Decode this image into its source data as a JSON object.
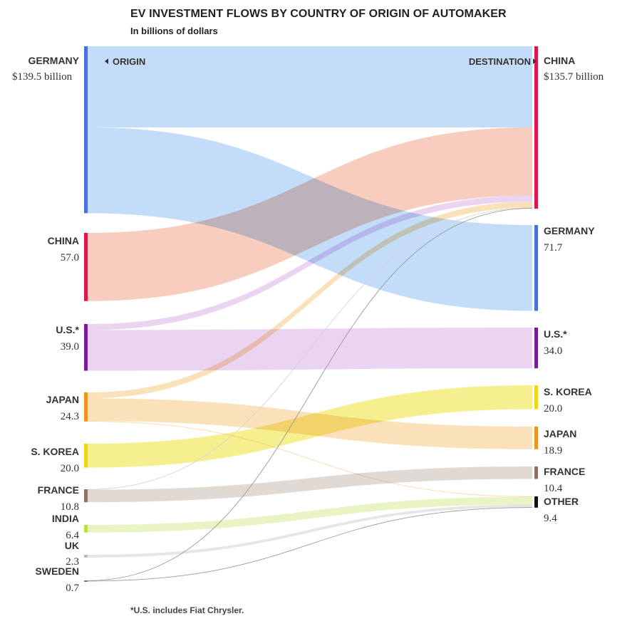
{
  "title": "EV INVESTMENT FLOWS BY COUNTRY OF ORIGIN OF AUTOMAKER",
  "subtitle": "In billions of dollars",
  "footnote": "*U.S. includes Fiat Chrysler.",
  "origin_header": "ORIGIN",
  "destination_header": "DESTINATION",
  "chart_data": {
    "type": "sankey",
    "units": "billions of dollars",
    "sources": [
      {
        "name": "GERMANY",
        "value_label": "$139.5 billion",
        "value": 139.5,
        "color": "#4a6ee0"
      },
      {
        "name": "CHINA",
        "value_label": "57.0",
        "value": 57.0,
        "color": "#e0174b"
      },
      {
        "name": "U.S.*",
        "value_label": "39.0",
        "value": 39.0,
        "color": "#7a1a9a"
      },
      {
        "name": "JAPAN",
        "value_label": "24.3",
        "value": 24.3,
        "color": "#f0921e"
      },
      {
        "name": "S. KOREA",
        "value_label": "20.0",
        "value": 20.0,
        "color": "#f2d41b"
      },
      {
        "name": "FRANCE",
        "value_label": "10.8",
        "value": 10.8,
        "color": "#8d7266"
      },
      {
        "name": "INDIA",
        "value_label": "6.4",
        "value": 6.4,
        "color": "#b7e048"
      },
      {
        "name": "UK",
        "value_label": "2.3",
        "value": 2.3,
        "color": "#bbbbbb"
      },
      {
        "name": "SWEDEN",
        "value_label": "0.7",
        "value": 0.7,
        "color": "#777777"
      }
    ],
    "targets": [
      {
        "name": "CHINA",
        "value_label": "$135.7 billion",
        "value": 135.7,
        "color": "#e0174b"
      },
      {
        "name": "GERMANY",
        "value_label": "71.7",
        "value": 71.7,
        "color": "#4a6ee0"
      },
      {
        "name": "U.S.*",
        "value_label": "34.0",
        "value": 34.0,
        "color": "#7a1a9a"
      },
      {
        "name": "S. KOREA",
        "value_label": "20.0",
        "value": 20.0,
        "color": "#f2d41b"
      },
      {
        "name": "JAPAN",
        "value_label": "18.9",
        "value": 18.9,
        "color": "#f0921e"
      },
      {
        "name": "FRANCE",
        "value_label": "10.4",
        "value": 10.4,
        "color": "#8d7266"
      },
      {
        "name": "OTHER",
        "value_label": "9.4",
        "value": 9.4,
        "color": "#111111"
      }
    ],
    "flows": [
      {
        "from": "GERMANY",
        "to": "CHINA",
        "value": 67.8,
        "color": "#b8d6f7"
      },
      {
        "from": "GERMANY",
        "to": "GERMANY",
        "value": 71.7,
        "color": "#b8d6f7"
      },
      {
        "from": "CHINA",
        "to": "CHINA",
        "value": 57.0,
        "color": "#f6c4b4"
      },
      {
        "from": "U.S.*",
        "to": "CHINA",
        "value": 5.0,
        "color": "#e6ccee"
      },
      {
        "from": "U.S.*",
        "to": "U.S.*",
        "value": 34.0,
        "color": "#e6ccee"
      },
      {
        "from": "JAPAN",
        "to": "CHINA",
        "value": 5.0,
        "color": "#fadcae"
      },
      {
        "from": "JAPAN",
        "to": "JAPAN",
        "value": 18.9,
        "color": "#fadcae"
      },
      {
        "from": "JAPAN",
        "to": "OTHER",
        "value": 0.4,
        "color": "#fadcae"
      },
      {
        "from": "S. KOREA",
        "to": "S. KOREA",
        "value": 20.0,
        "color": "#f5ec7c"
      },
      {
        "from": "FRANCE",
        "to": "CHINA",
        "value": 0.4,
        "color": "#dcd2cd"
      },
      {
        "from": "FRANCE",
        "to": "FRANCE",
        "value": 10.4,
        "color": "#dcd2cd"
      },
      {
        "from": "INDIA",
        "to": "OTHER",
        "value": 6.4,
        "color": "#e4f2b8"
      },
      {
        "from": "UK",
        "to": "OTHER",
        "value": 2.3,
        "color": "#e2e2e2"
      },
      {
        "from": "SWEDEN",
        "to": "CHINA",
        "value": 0.4,
        "color": "#d2d2d2"
      },
      {
        "from": "SWEDEN",
        "to": "OTHER",
        "value": 0.3,
        "color": "#d2d2d2"
      }
    ]
  }
}
